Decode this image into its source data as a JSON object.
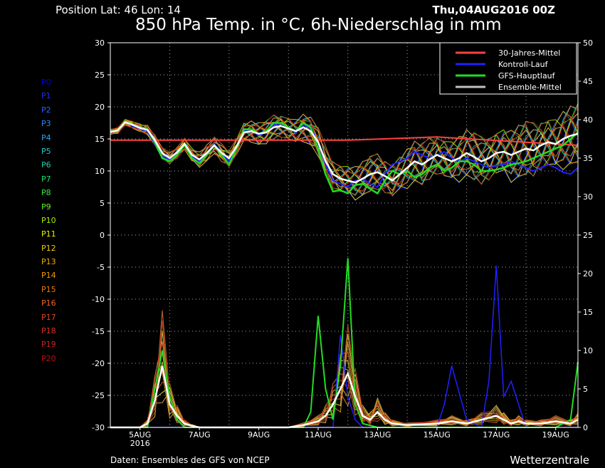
{
  "header": {
    "position": "Position  Lat: 46 Lon: 14",
    "run_date": "Thu,04AUG2016 00Z",
    "title": "850 hPa Temp. in °C, 6h-Niederschlag in mm"
  },
  "footer": {
    "source": "Daten: Ensembles des GFS von NCEP",
    "brand": "Wetterzentrale"
  },
  "members": [
    {
      "label": "P0",
      "color": "#0000ee"
    },
    {
      "label": "P1",
      "color": "#1a2cff"
    },
    {
      "label": "P2",
      "color": "#2266ff"
    },
    {
      "label": "P3",
      "color": "#2a8cff"
    },
    {
      "label": "P4",
      "color": "#22aaee"
    },
    {
      "label": "P5",
      "color": "#22cccc"
    },
    {
      "label": "P6",
      "color": "#22ccaa"
    },
    {
      "label": "P7",
      "color": "#22dd77"
    },
    {
      "label": "P8",
      "color": "#33ee44"
    },
    {
      "label": "P9",
      "color": "#66ee22"
    },
    {
      "label": "P10",
      "color": "#aaee00"
    },
    {
      "label": "P11",
      "color": "#eeee00"
    },
    {
      "label": "P12",
      "color": "#eecc00"
    },
    {
      "label": "P13",
      "color": "#eeaa00"
    },
    {
      "label": "P14",
      "color": "#ee9900"
    },
    {
      "label": "P15",
      "color": "#ee7700"
    },
    {
      "label": "P16",
      "color": "#ee6622"
    },
    {
      "label": "P17",
      "color": "#dd4422"
    },
    {
      "label": "P18",
      "color": "#dd3322"
    },
    {
      "label": "P19",
      "color": "#cc2222"
    },
    {
      "label": "P20",
      "color": "#bb1111"
    }
  ],
  "chart_data": {
    "type": "line",
    "grid": true,
    "legend_position": "top-right",
    "x_tick_labels": [
      "5AUG",
      "7AUG",
      "9AUG",
      "11AUG",
      "13AUG",
      "15AUG",
      "17AUG",
      "19AUG"
    ],
    "x_first_tick_sublabel": "2016",
    "x_range_days": [
      4.0,
      19.75
    ],
    "left_axis": {
      "ylim": [
        -30,
        30
      ],
      "ticks": [
        30,
        25,
        20,
        15,
        10,
        5,
        0,
        -5,
        -10,
        -15,
        -20,
        -25,
        -30
      ]
    },
    "right_axis": {
      "ylim": [
        0,
        50
      ],
      "ticks": [
        50,
        45,
        40,
        35,
        30,
        25,
        20,
        15,
        10,
        5,
        0
      ]
    },
    "legend": [
      {
        "name": "30-Jahres-Mittel",
        "color": "#ff4040"
      },
      {
        "name": "Kontroll-Lauf",
        "color": "#2020ff"
      },
      {
        "name": "GFS-Hauptlauf",
        "color": "#22dd22"
      },
      {
        "name": "Ensemble-Mittel",
        "color": "#c0c0c0"
      }
    ],
    "temperature_climate": {
      "x": [
        4.0,
        12.0,
        15.0,
        19.75
      ],
      "y": [
        14.8,
        14.8,
        15.3,
        14.0
      ]
    },
    "temperature_main_run": {
      "x": [
        4.0,
        4.25,
        4.5,
        4.75,
        5.0,
        5.25,
        5.5,
        5.75,
        6.0,
        6.25,
        6.5,
        6.75,
        7.0,
        7.25,
        7.5,
        7.75,
        8.0,
        8.25,
        8.5,
        8.75,
        9.0,
        9.25,
        9.5,
        9.75,
        10.0,
        10.25,
        10.5,
        10.75,
        11.0,
        11.25,
        11.5,
        11.75,
        12.0,
        12.25,
        12.5,
        12.75,
        13.0,
        13.25,
        13.5,
        13.75,
        14.0,
        14.25,
        14.5,
        14.75,
        15.0,
        15.25,
        15.5,
        15.75,
        16.0,
        16.25,
        16.5,
        16.75,
        17.0,
        17.25,
        17.5,
        17.75,
        18.0,
        18.25,
        18.5,
        18.75,
        19.0,
        19.25,
        19.5,
        19.75
      ],
      "y": [
        16.2,
        16.3,
        17.8,
        17.2,
        16.8,
        16.5,
        14.5,
        12.0,
        11.5,
        12.5,
        14.0,
        12.0,
        11.2,
        12.5,
        14.0,
        12.5,
        11.0,
        13.5,
        16.5,
        16.5,
        15.8,
        16.2,
        17.5,
        17.5,
        16.8,
        16.2,
        17.5,
        16.8,
        13.5,
        9.5,
        6.8,
        7.0,
        6.5,
        7.8,
        8.0,
        7.2,
        6.5,
        8.5,
        10.0,
        9.5,
        10.0,
        9.0,
        9.5,
        10.5,
        11.0,
        10.0,
        10.5,
        11.5,
        11.5,
        11.0,
        10.0,
        10.0,
        10.2,
        10.5,
        11.0,
        11.2,
        11.5,
        12.0,
        12.5,
        13.0,
        13.5,
        14.0,
        15.0,
        16.0
      ]
    },
    "temperature_control_run": {
      "x": [
        4.0,
        4.25,
        4.5,
        4.75,
        5.0,
        5.25,
        5.5,
        5.75,
        6.0,
        6.25,
        6.5,
        6.75,
        7.0,
        7.25,
        7.5,
        7.75,
        8.0,
        8.25,
        8.5,
        8.75,
        9.0,
        9.25,
        9.5,
        9.75,
        10.0,
        10.25,
        10.5,
        10.75,
        11.0,
        11.25,
        11.5,
        11.75,
        12.0,
        12.25,
        12.5,
        12.75,
        13.0,
        13.25,
        13.5,
        13.75,
        14.0,
        14.25,
        14.5,
        14.75,
        15.0,
        15.25,
        15.5,
        15.75,
        16.0,
        16.25,
        16.5,
        16.75,
        17.0,
        17.25,
        17.5,
        17.75,
        18.0,
        18.25,
        18.5,
        18.75,
        19.0,
        19.25,
        19.5,
        19.75
      ],
      "y": [
        16.1,
        16.2,
        17.7,
        17.0,
        16.6,
        16.2,
        14.2,
        12.3,
        11.8,
        12.8,
        14.2,
        12.2,
        11.5,
        12.8,
        14.2,
        12.8,
        11.5,
        13.8,
        16.3,
        16.2,
        15.6,
        16.0,
        17.2,
        17.4,
        16.6,
        16.0,
        17.2,
        16.6,
        14.5,
        11.0,
        8.5,
        8.0,
        7.5,
        8.5,
        8.8,
        8.0,
        7.5,
        9.5,
        11.0,
        11.5,
        12.0,
        13.0,
        12.5,
        12.0,
        12.5,
        13.0,
        12.0,
        11.5,
        12.0,
        11.5,
        11.0,
        10.5,
        10.8,
        11.0,
        11.5,
        11.0,
        10.5,
        10.0,
        10.5,
        11.0,
        10.5,
        9.8,
        9.5,
        10.5
      ]
    },
    "temperature_ensemble_mean": {
      "x": [
        4.0,
        4.25,
        4.5,
        4.75,
        5.0,
        5.25,
        5.5,
        5.75,
        6.0,
        6.25,
        6.5,
        6.75,
        7.0,
        7.25,
        7.5,
        7.75,
        8.0,
        8.25,
        8.5,
        8.75,
        9.0,
        9.25,
        9.5,
        9.75,
        10.0,
        10.25,
        10.5,
        10.75,
        11.0,
        11.25,
        11.5,
        11.75,
        12.0,
        12.25,
        12.5,
        12.75,
        13.0,
        13.25,
        13.5,
        13.75,
        14.0,
        14.25,
        14.5,
        14.75,
        15.0,
        15.25,
        15.5,
        15.75,
        16.0,
        16.25,
        16.5,
        16.75,
        17.0,
        17.25,
        17.5,
        17.75,
        18.0,
        18.25,
        18.5,
        18.75,
        19.0,
        19.25,
        19.5,
        19.75
      ],
      "y": [
        16.1,
        16.3,
        17.6,
        17.2,
        16.7,
        16.4,
        14.8,
        12.8,
        12.0,
        12.9,
        14.2,
        12.5,
        11.8,
        12.8,
        14.0,
        12.8,
        12.0,
        13.8,
        16.0,
        16.2,
        15.8,
        16.0,
        16.8,
        17.0,
        16.6,
        16.2,
        16.8,
        16.2,
        14.5,
        11.5,
        9.5,
        8.8,
        8.5,
        8.2,
        8.8,
        9.5,
        9.8,
        9.2,
        8.5,
        9.5,
        10.5,
        11.5,
        11.0,
        11.8,
        12.5,
        12.0,
        11.5,
        12.0,
        12.8,
        12.2,
        11.5,
        12.0,
        12.8,
        13.0,
        12.5,
        13.0,
        13.5,
        13.2,
        14.0,
        14.5,
        14.2,
        15.0,
        15.5,
        15.8
      ]
    },
    "precipitation_ensemble_mean_mm": {
      "x": [
        4.0,
        5.0,
        5.25,
        5.5,
        5.75,
        6.0,
        6.25,
        6.5,
        6.75,
        7.0,
        10.0,
        10.5,
        11.0,
        11.25,
        11.5,
        11.75,
        12.0,
        12.25,
        12.5,
        12.75,
        13.0,
        13.25,
        13.5,
        14.0,
        15.0,
        15.5,
        16.0,
        16.5,
        17.0,
        17.25,
        17.5,
        17.75,
        18.0,
        18.5,
        19.0,
        19.5,
        19.75
      ],
      "y": [
        0,
        0,
        0.5,
        3.5,
        8.0,
        3.0,
        1.5,
        0.5,
        0.2,
        0,
        0,
        0.3,
        0.8,
        1.5,
        3.0,
        5.0,
        7.0,
        4.0,
        1.5,
        1.0,
        2.0,
        1.0,
        0.5,
        0.3,
        0.5,
        0.8,
        0.5,
        1.0,
        1.5,
        1.0,
        0.5,
        0.8,
        0.5,
        0.5,
        0.8,
        0.5,
        1.0
      ]
    },
    "precipitation_main_run_mm": {
      "x": [
        4.0,
        5.25,
        5.5,
        5.75,
        6.0,
        6.25,
        6.5,
        7.0,
        10.5,
        10.75,
        11.0,
        11.25,
        11.5,
        11.75,
        12.0,
        12.25,
        12.5,
        13.0,
        14.0,
        19.0,
        19.5,
        19.75
      ],
      "y": [
        0,
        0,
        5.0,
        10.0,
        4.0,
        1.0,
        0,
        0,
        0,
        2.0,
        14.5,
        5.0,
        1.0,
        8.0,
        22.0,
        3.0,
        0.5,
        0,
        0,
        0,
        1.0,
        8.5
      ]
    },
    "precipitation_control_run_mm": {
      "x": [
        4.0,
        11.5,
        11.75,
        12.0,
        12.25,
        12.5,
        15.0,
        15.25,
        15.5,
        16.0,
        16.5,
        16.75,
        17.0,
        17.25,
        17.5,
        18.0,
        19.0,
        19.75
      ],
      "y": [
        0,
        0,
        12.0,
        4.0,
        1.0,
        0,
        0,
        3.0,
        8.0,
        1.0,
        0,
        6.0,
        21.0,
        4.0,
        6.0,
        0,
        0,
        0
      ]
    }
  }
}
